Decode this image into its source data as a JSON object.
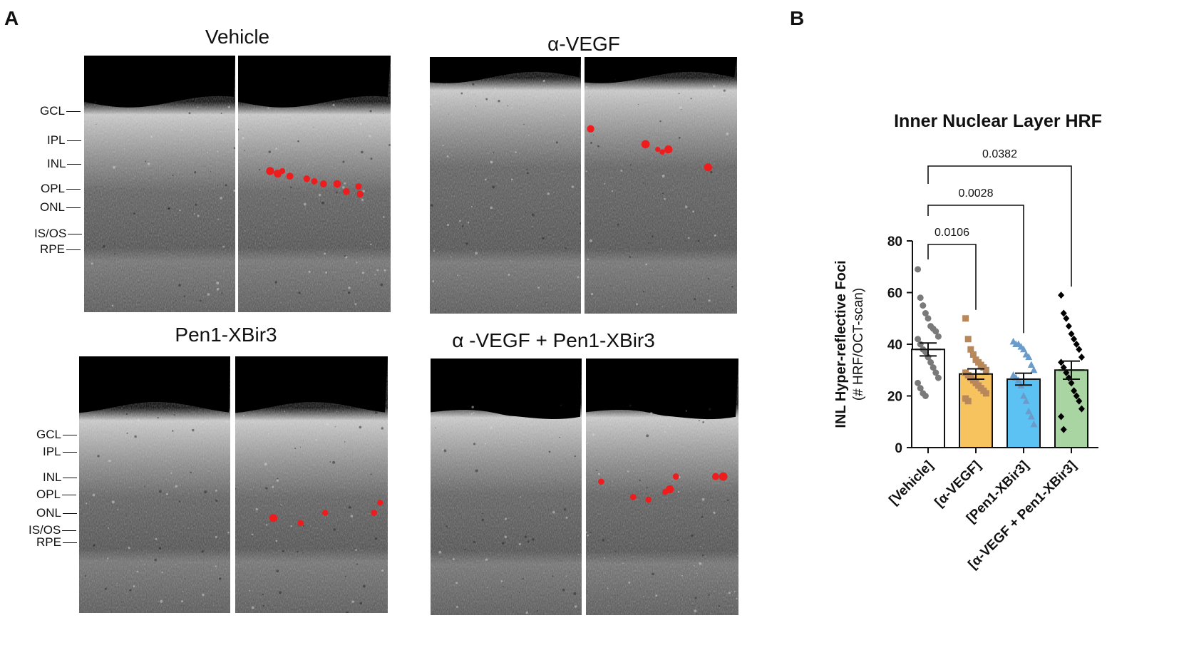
{
  "panel_a": {
    "letter": "A",
    "panels": [
      {
        "title": "Vehicle",
        "foci": [
          [
            0.21,
            0.45
          ],
          [
            0.26,
            0.46
          ],
          [
            0.29,
            0.45
          ],
          [
            0.34,
            0.47
          ],
          [
            0.45,
            0.48
          ],
          [
            0.5,
            0.49
          ],
          [
            0.56,
            0.5
          ],
          [
            0.65,
            0.5
          ],
          [
            0.71,
            0.53
          ],
          [
            0.79,
            0.51
          ],
          [
            0.8,
            0.54
          ]
        ]
      },
      {
        "title": "α-VEGF",
        "foci": [
          [
            0.04,
            0.28
          ],
          [
            0.4,
            0.34
          ],
          [
            0.48,
            0.36
          ],
          [
            0.51,
            0.37
          ],
          [
            0.55,
            0.36
          ],
          [
            0.81,
            0.43
          ]
        ]
      },
      {
        "title": "Pen1-XBir3",
        "foci": [
          [
            0.25,
            0.63
          ],
          [
            0.43,
            0.65
          ],
          [
            0.59,
            0.61
          ],
          [
            0.91,
            0.61
          ],
          [
            0.95,
            0.57
          ]
        ]
      },
      {
        "title": "α -VEGF + Pen1-XBir3",
        "foci": [
          [
            0.1,
            0.48
          ],
          [
            0.31,
            0.54
          ],
          [
            0.41,
            0.55
          ],
          [
            0.52,
            0.52
          ],
          [
            0.55,
            0.51
          ],
          [
            0.59,
            0.46
          ],
          [
            0.85,
            0.46
          ],
          [
            0.9,
            0.46
          ]
        ]
      }
    ],
    "layer_labels": [
      "GCL",
      "IPL",
      "INL",
      "OPL",
      "ONL",
      "IS/OS",
      "RPE"
    ]
  },
  "panel_b": {
    "letter": "B"
  },
  "colors": {
    "vehicle_bar": "#ffffff",
    "avegf_bar": "#f7c35f",
    "pen1_bar": "#5bc2f3",
    "combo_bar": "#a8d5a2",
    "vehicle_points": "#7a7a7a",
    "avegf_points": "#b8875a",
    "pen1_points": "#6a9ccb",
    "combo_points": "#000000",
    "focus_red": "#ee1c1c"
  },
  "chart_data": {
    "type": "bar",
    "title": "Inner Nuclear Layer HRF",
    "ylabel": "INL Hyper-reflective Foci",
    "ylabel_sub": "(# HRF/OCT-scan)",
    "ylim": [
      0,
      80
    ],
    "yticks": [
      0,
      20,
      40,
      60,
      80
    ],
    "categories": [
      "[Vehicle]",
      "[α-VEGF]",
      "[Pen1-XBir3]",
      "[α-VEGF + Pen1-XBir3]"
    ],
    "values": [
      38,
      28.5,
      26.5,
      30
    ],
    "errors": [
      2.5,
      2.0,
      2.3,
      3.5
    ],
    "markers": [
      "circle",
      "square",
      "triangle",
      "diamond"
    ],
    "points": [
      [
        69,
        58,
        55,
        52,
        50,
        47,
        46,
        45,
        43,
        42,
        40,
        38,
        37,
        35,
        33,
        31,
        29,
        27,
        25,
        23,
        21,
        20
      ],
      [
        50,
        42,
        38,
        36,
        34,
        33,
        32,
        31,
        30,
        29,
        28,
        27,
        26,
        25,
        24,
        23,
        22,
        21,
        19,
        18
      ],
      [
        41,
        40,
        40,
        39,
        38,
        36,
        35,
        32,
        30,
        28,
        27,
        26,
        24,
        20,
        18,
        14,
        12,
        9
      ],
      [
        59,
        52,
        50,
        47,
        44,
        42,
        40,
        38,
        35,
        33,
        31,
        29,
        27,
        25,
        22,
        20,
        18,
        15,
        12,
        7
      ]
    ],
    "comparisons": [
      {
        "from": 0,
        "to": 1,
        "p": "0.0106"
      },
      {
        "from": 0,
        "to": 2,
        "p": "0.0028"
      },
      {
        "from": 0,
        "to": 3,
        "p": "0.0382"
      }
    ]
  }
}
